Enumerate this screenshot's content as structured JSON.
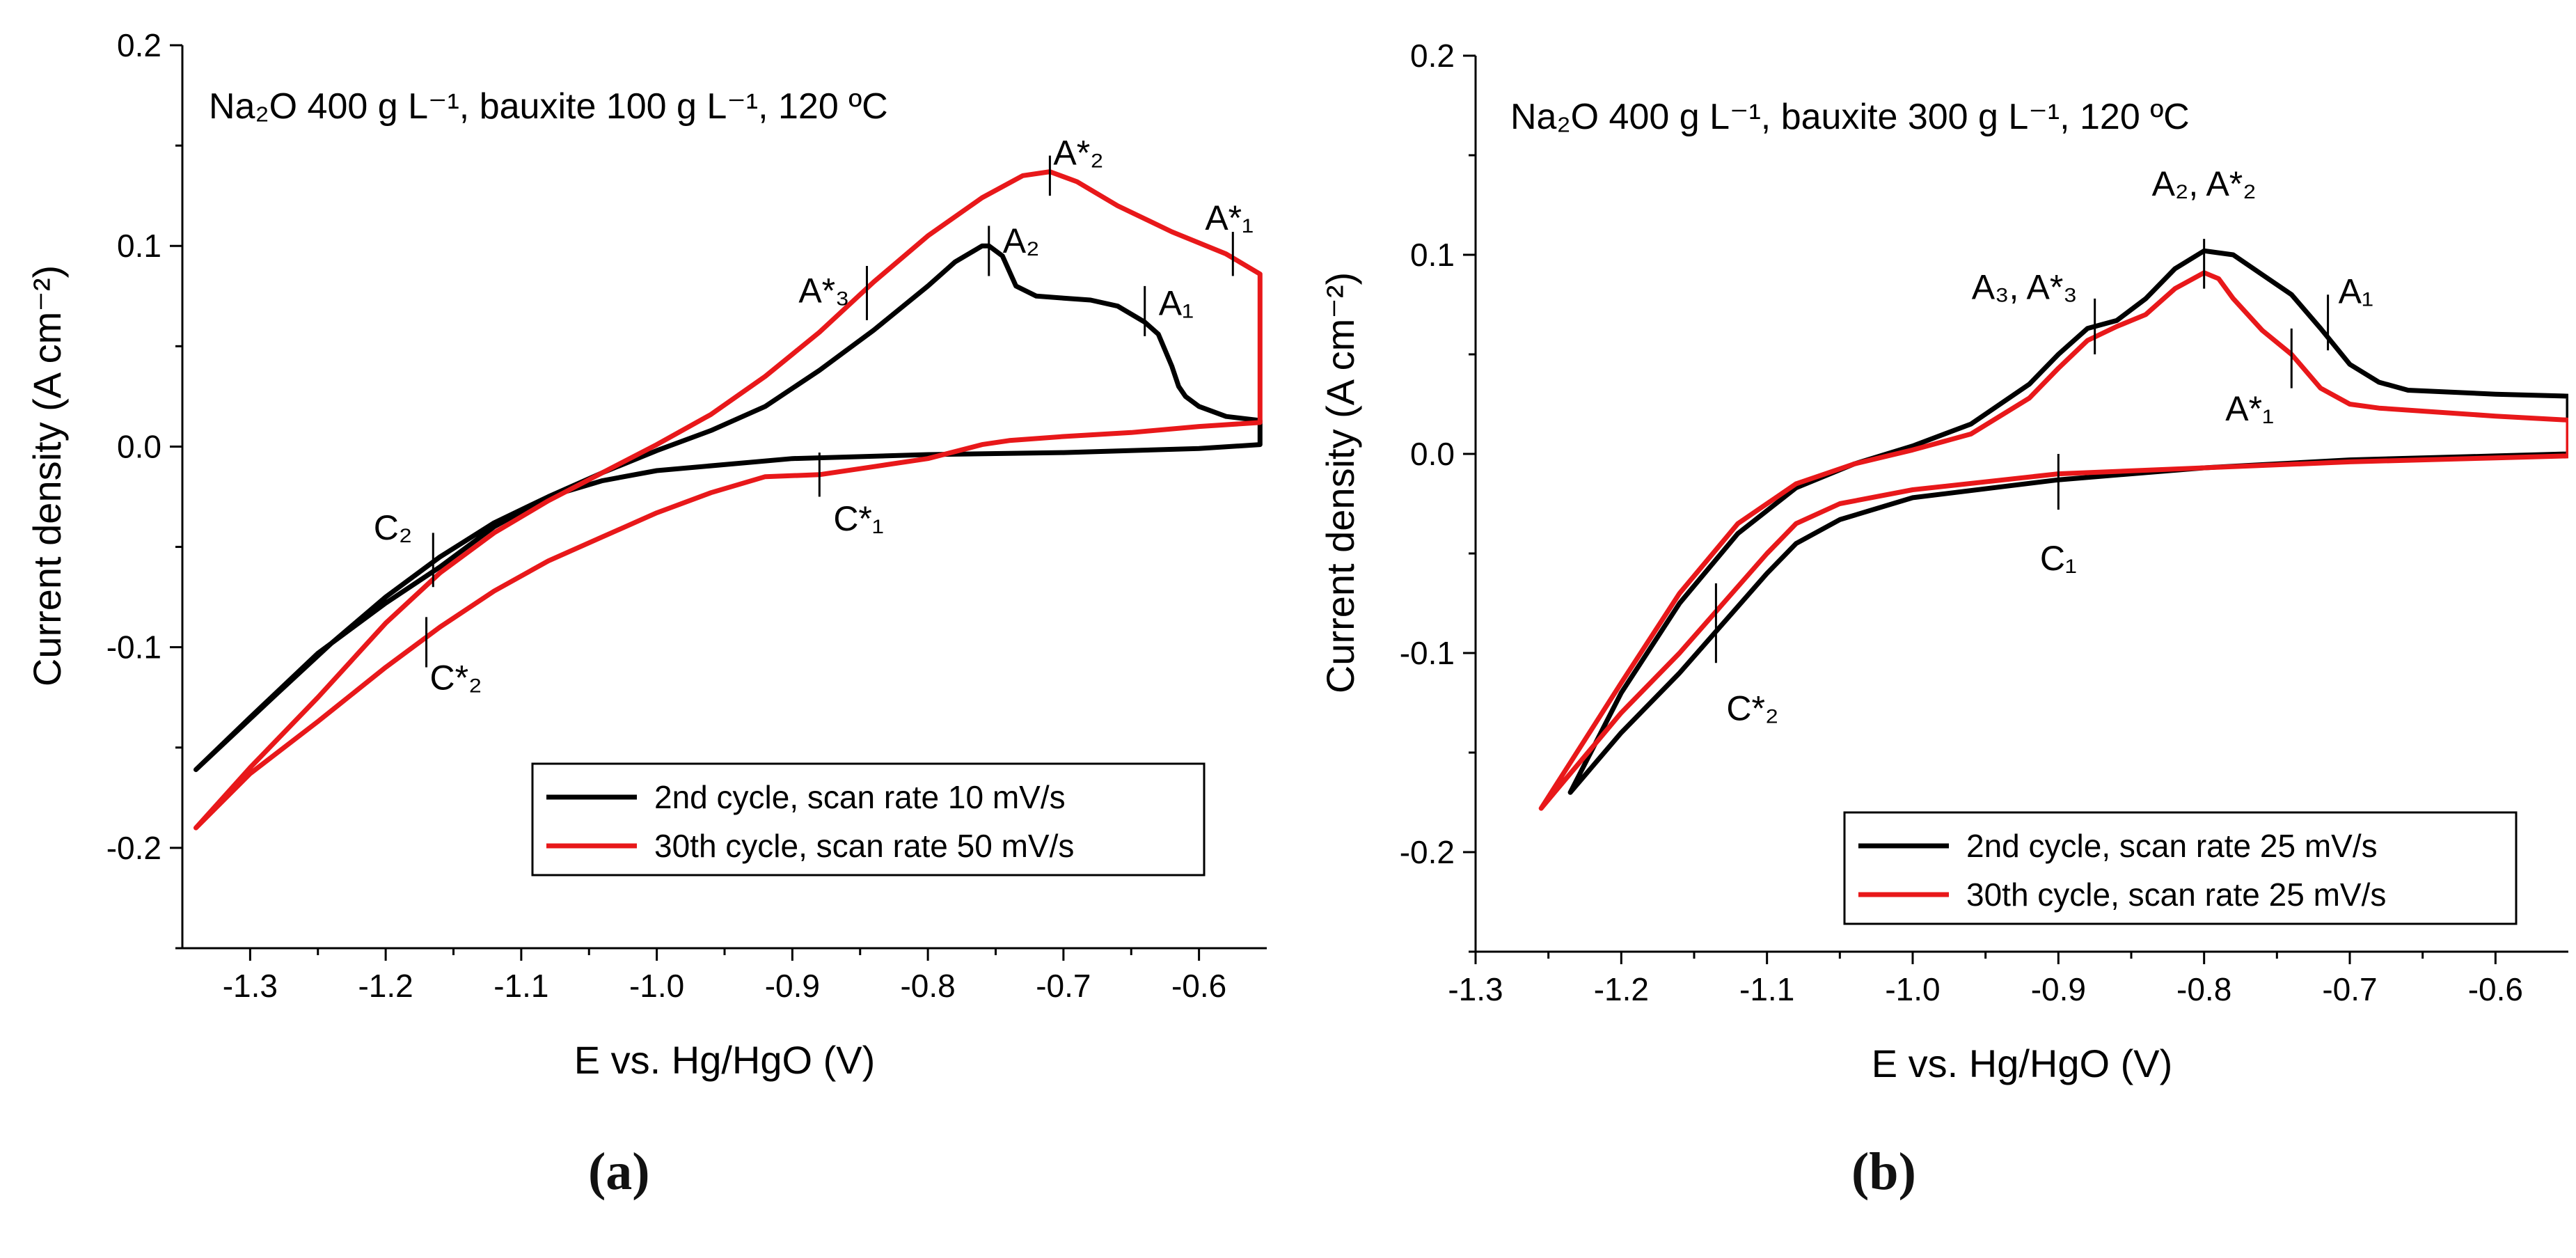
{
  "colors": {
    "cycle2": "#000000",
    "cycle30": "#e8181a",
    "axis": "#000000"
  },
  "chart_data": [
    {
      "type": "line",
      "panel_label": "(a)",
      "title": "Na₂O 400 g L⁻¹, bauxite 100 g L⁻¹, 120 ºC",
      "xlabel": "E vs. Hg/HgO (V)",
      "ylabel": "Current density (A cm⁻²)",
      "xlim": [
        -1.35,
        -0.55
      ],
      "ylim": [
        -0.25,
        0.2
      ],
      "x_ticks": [
        -1.3,
        -1.2,
        -1.1,
        -1.0,
        -0.9,
        -0.8,
        -0.7,
        -0.6
      ],
      "x_tick_labels": [
        "-1.3",
        "-1.2",
        "-1.1",
        "-1.0",
        "-0.9",
        "-0.8",
        "-0.7",
        "-0.6"
      ],
      "y_ticks": [
        -0.2,
        -0.1,
        0.0,
        0.1,
        0.2
      ],
      "y_tick_labels": [
        "-0.2",
        "-0.1",
        "0.0",
        "0.1",
        "0.2"
      ],
      "legend_position": "bottom-right",
      "series": [
        {
          "name": "2nd cycle, scan rate 10 mV/s",
          "color_key": "cycle2",
          "x": [
            -1.34,
            -1.3,
            -1.25,
            -1.2,
            -1.16,
            -1.12,
            -1.08,
            -1.04,
            -1.0,
            -0.96,
            -0.92,
            -0.88,
            -0.84,
            -0.8,
            -0.78,
            -0.76,
            -0.755,
            -0.745,
            -0.735,
            -0.72,
            -0.7,
            -0.68,
            -0.66,
            -0.64,
            -0.63,
            -0.62,
            -0.615,
            -0.61,
            -0.6,
            -0.58,
            -0.555,
            -0.555,
            -0.6,
            -0.7,
            -0.8,
            -0.9,
            -1.0,
            -1.04,
            -1.08,
            -1.12,
            -1.16,
            -1.2,
            -1.24,
            -1.28,
            -1.34
          ],
          "y": [
            -0.161,
            -0.135,
            -0.103,
            -0.078,
            -0.06,
            -0.04,
            -0.025,
            -0.013,
            -0.002,
            0.008,
            0.02,
            0.038,
            0.058,
            0.08,
            0.092,
            0.1,
            0.1,
            0.095,
            0.08,
            0.075,
            0.074,
            0.073,
            0.07,
            0.062,
            0.056,
            0.04,
            0.03,
            0.025,
            0.02,
            0.015,
            0.013,
            0.001,
            -0.001,
            -0.003,
            -0.004,
            -0.006,
            -0.012,
            -0.017,
            -0.025,
            -0.038,
            -0.055,
            -0.075,
            -0.098,
            -0.123,
            -0.161
          ]
        },
        {
          "name": "30th cycle, scan rate 50 mV/s",
          "color_key": "cycle30",
          "x": [
            -1.34,
            -1.3,
            -1.25,
            -1.2,
            -1.16,
            -1.12,
            -1.08,
            -1.04,
            -1.0,
            -0.96,
            -0.92,
            -0.88,
            -0.84,
            -0.8,
            -0.76,
            -0.73,
            -0.71,
            -0.69,
            -0.66,
            -0.62,
            -0.58,
            -0.555,
            -0.555,
            -0.6,
            -0.65,
            -0.7,
            -0.74,
            -0.76,
            -0.8,
            -0.84,
            -0.88,
            -0.92,
            -0.96,
            -1.0,
            -1.04,
            -1.08,
            -1.12,
            -1.16,
            -1.2,
            -1.25,
            -1.3,
            -1.34
          ],
          "y": [
            -0.19,
            -0.16,
            -0.125,
            -0.088,
            -0.063,
            -0.043,
            -0.027,
            -0.013,
            0.001,
            0.016,
            0.035,
            0.057,
            0.082,
            0.105,
            0.124,
            0.135,
            0.137,
            0.132,
            0.12,
            0.107,
            0.096,
            0.086,
            0.012,
            0.01,
            0.007,
            0.005,
            0.003,
            0.001,
            -0.006,
            -0.01,
            -0.014,
            -0.015,
            -0.023,
            -0.033,
            -0.045,
            -0.057,
            -0.072,
            -0.09,
            -0.11,
            -0.137,
            -0.163,
            -0.19
          ]
        }
      ],
      "annotations": [
        {
          "text": "A*₂",
          "x": -0.71,
          "y": 0.137,
          "tick": [
            0.125,
            0.145
          ],
          "dx": 5,
          "dy": -10,
          "anchor": "start"
        },
        {
          "text": "A*₃",
          "x": -0.845,
          "y": 0.058,
          "tick": [
            0.063,
            0.09
          ],
          "dx": -25,
          "dy": -40,
          "anchor": "end"
        },
        {
          "text": "A₂",
          "x": -0.755,
          "y": 0.1,
          "tick": [
            0.085,
            0.11
          ],
          "dx": 20,
          "dy": 10,
          "anchor": "start"
        },
        {
          "text": "A₁",
          "x": -0.64,
          "y": 0.062,
          "tick": [
            0.055,
            0.08
          ],
          "dx": 20,
          "dy": -10,
          "anchor": "start"
        },
        {
          "text": "A*₁",
          "x": -0.575,
          "y": 0.096,
          "tick": [
            0.085,
            0.107
          ],
          "dx": -40,
          "dy": -35,
          "anchor": "start"
        },
        {
          "text": "C*₁",
          "x": -0.88,
          "y": -0.014,
          "tick": [
            -0.025,
            -0.003
          ],
          "dx": 20,
          "dy": 80,
          "anchor": "start"
        },
        {
          "text": "C₂",
          "x": -1.165,
          "y": -0.062,
          "tick": [
            -0.07,
            -0.043
          ],
          "dx": -30,
          "dy": -45,
          "anchor": "end"
        },
        {
          "text": "C*₂",
          "x": -1.17,
          "y": -0.095,
          "tick": [
            -0.11,
            -0.085
          ],
          "dx": 5,
          "dy": 75,
          "anchor": "start"
        }
      ]
    },
    {
      "type": "line",
      "panel_label": "(b)",
      "title": "Na₂O 400 g L⁻¹, bauxite 300 g L⁻¹, 120 ºC",
      "xlabel": "E vs. Hg/HgO (V)",
      "ylabel": "Current density (A cm⁻²)",
      "xlim": [
        -1.3,
        -0.55
      ],
      "ylim": [
        -0.25,
        0.2
      ],
      "x_ticks": [
        -1.3,
        -1.2,
        -1.1,
        -1.0,
        -0.9,
        -0.8,
        -0.7,
        -0.6
      ],
      "x_tick_labels": [
        "-1.3",
        "-1.2",
        "-1.1",
        "-1.0",
        "-0.9",
        "-0.8",
        "-0.7",
        "-0.6"
      ],
      "y_ticks": [
        -0.2,
        -0.1,
        0.0,
        0.1,
        0.2
      ],
      "y_tick_labels": [
        "-0.2",
        "-0.1",
        "0.0",
        "0.1",
        "0.2"
      ],
      "legend_position": "bottom-right",
      "series": [
        {
          "name": "2nd cycle, scan rate 25 mV/s",
          "color_key": "cycle2",
          "x": [
            -1.235,
            -1.2,
            -1.16,
            -1.12,
            -1.08,
            -1.04,
            -1.0,
            -0.96,
            -0.92,
            -0.9,
            -0.88,
            -0.86,
            -0.84,
            -0.82,
            -0.8,
            -0.78,
            -0.76,
            -0.74,
            -0.72,
            -0.7,
            -0.68,
            -0.66,
            -0.6,
            -0.55,
            -0.55,
            -0.6,
            -0.7,
            -0.8,
            -0.9,
            -1.0,
            -1.05,
            -1.08,
            -1.1,
            -1.13,
            -1.16,
            -1.2,
            -1.235
          ],
          "y": [
            -0.17,
            -0.12,
            -0.075,
            -0.04,
            -0.017,
            -0.005,
            0.004,
            0.015,
            0.035,
            0.05,
            0.063,
            0.067,
            0.078,
            0.093,
            0.102,
            0.1,
            0.09,
            0.08,
            0.063,
            0.045,
            0.036,
            0.032,
            0.03,
            0.029,
            0.0,
            -0.001,
            -0.003,
            -0.007,
            -0.013,
            -0.022,
            -0.033,
            -0.045,
            -0.06,
            -0.085,
            -0.11,
            -0.14,
            -0.17
          ]
        },
        {
          "name": "30th cycle, scan rate 25 mV/s",
          "color_key": "cycle30",
          "x": [
            -1.255,
            -1.2,
            -1.16,
            -1.12,
            -1.08,
            -1.04,
            -1.0,
            -0.96,
            -0.92,
            -0.9,
            -0.88,
            -0.86,
            -0.84,
            -0.82,
            -0.8,
            -0.79,
            -0.78,
            -0.76,
            -0.74,
            -0.72,
            -0.7,
            -0.68,
            -0.6,
            -0.55,
            -0.55,
            -0.6,
            -0.7,
            -0.8,
            -0.9,
            -1.0,
            -1.05,
            -1.08,
            -1.1,
            -1.13,
            -1.16,
            -1.2,
            -1.255
          ],
          "y": [
            -0.178,
            -0.115,
            -0.07,
            -0.035,
            -0.015,
            -0.005,
            0.002,
            0.01,
            0.028,
            0.043,
            0.057,
            0.064,
            0.07,
            0.083,
            0.091,
            0.088,
            0.078,
            0.062,
            0.05,
            0.033,
            0.025,
            0.023,
            0.019,
            0.017,
            -0.001,
            -0.002,
            -0.004,
            -0.007,
            -0.01,
            -0.018,
            -0.025,
            -0.035,
            -0.05,
            -0.075,
            -0.1,
            -0.13,
            -0.178
          ]
        }
      ],
      "annotations": [
        {
          "text": "A₂, A*₂",
          "x": -0.8,
          "y": 0.1,
          "tick": [
            0.083,
            0.108
          ],
          "dx": 0,
          "dy": -85,
          "anchor": "middle"
        },
        {
          "text": "A₃, A*₃",
          "x": -0.875,
          "y": 0.062,
          "tick": [
            0.05,
            0.078
          ],
          "dx": -25,
          "dy": -45,
          "anchor": "end"
        },
        {
          "text": "A₁",
          "x": -0.715,
          "y": 0.06,
          "tick": [
            0.052,
            0.08
          ],
          "dx": 15,
          "dy": -45,
          "anchor": "start"
        },
        {
          "text": "A*₁",
          "x": -0.74,
          "y": 0.05,
          "tick": [
            0.033,
            0.063
          ],
          "dx": -95,
          "dy": 95,
          "anchor": "start"
        },
        {
          "text": "C₁",
          "x": -0.9,
          "y": -0.013,
          "tick": [
            -0.028,
            0.0
          ],
          "dx": 0,
          "dy": 130,
          "anchor": "middle"
        },
        {
          "text": "C*₂",
          "x": -1.135,
          "y": -0.09,
          "tick": [
            -0.105,
            -0.065
          ],
          "dx": 15,
          "dy": 125,
          "anchor": "start"
        }
      ]
    }
  ],
  "captions": {
    "a": "(a)",
    "b": "(b)"
  }
}
